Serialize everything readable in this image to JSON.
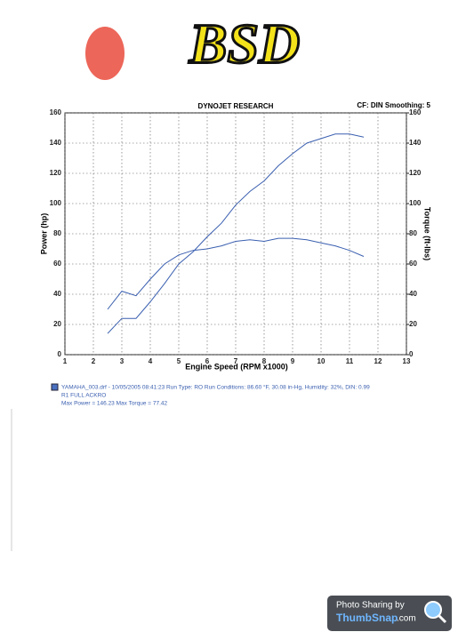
{
  "logo": {
    "text": "BSD"
  },
  "chart_data": {
    "type": "line",
    "title": "DYNOJET RESEARCH",
    "subtitle": "CF: DIN  Smoothing: 5",
    "x_label": "Engine Speed (RPM x1000)",
    "y_label": "Power (hp)",
    "y2_label": "Torque (ft-lbs)",
    "x": [
      2.5,
      3,
      3.5,
      4,
      4.5,
      5,
      5.5,
      6,
      6.5,
      7,
      7.5,
      8,
      8.5,
      9,
      9.5,
      10,
      10.5,
      11,
      11.5
    ],
    "series": [
      {
        "color": "#3a5fb0",
        "values": [
          14,
          24,
          24,
          35,
          47,
          60,
          68,
          78,
          87,
          99,
          108,
          115,
          125,
          133,
          140,
          143,
          146,
          146,
          144
        ]
      },
      {
        "color": "#3a5fb0",
        "axis": "y2",
        "values": [
          30,
          42,
          39,
          50,
          60,
          66,
          69,
          70,
          72,
          75,
          76,
          75,
          77,
          77,
          76,
          74,
          72,
          69,
          65
        ]
      }
    ],
    "xlim": [
      1,
      13
    ],
    "xticks": [
      1,
      2,
      3,
      4,
      5,
      6,
      7,
      8,
      9,
      10,
      11,
      12,
      13
    ],
    "ylim": [
      0,
      160
    ],
    "yticks": [
      0,
      20,
      40,
      60,
      80,
      100,
      120,
      140,
      160
    ],
    "y2lim": [
      0,
      160
    ],
    "y2ticks": [
      0,
      20,
      40,
      60,
      80,
      100,
      120,
      140,
      160
    ],
    "grid": true,
    "legend": [
      "YAMAHA_003.drf - 10/05/2005 08:41:23  Run Type: RO  Run Conditions: 86.60 °F, 30.08 in-Hg,  Humidity:  32%, DIN: 0.99",
      "R1 FULL ACKRO",
      "Max Power = 146.23  Max Torque = 77.42"
    ]
  },
  "watermark": {
    "line1": "Photo Sharing by",
    "brand": "ThumbSnap",
    "suffix": ".com"
  }
}
